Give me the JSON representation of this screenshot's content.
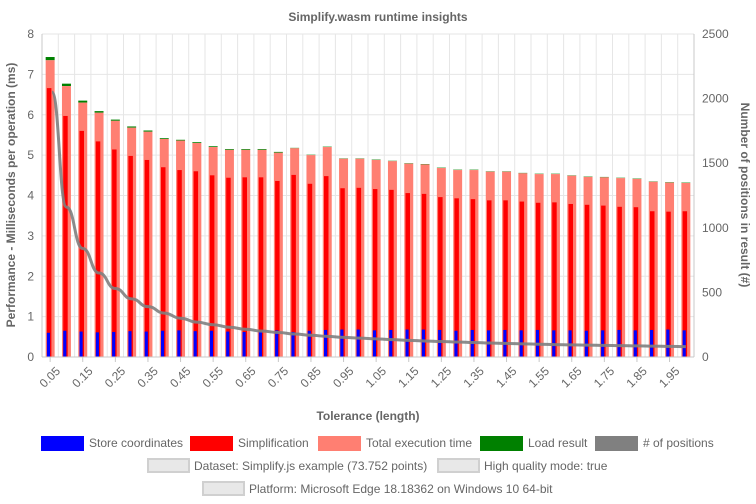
{
  "chart_data": {
    "type": "bar",
    "title": "Simplify.wasm runtime insights",
    "xlabel": "Tolerance (length)",
    "ylabel": "Performance - Milliseconds per operation (ms)",
    "y2label": "Number of positions in result (#)",
    "ylim": [
      0,
      8
    ],
    "y2lim": [
      0,
      2500
    ],
    "yticks": [
      "0",
      "1",
      "2",
      "3",
      "4",
      "5",
      "6",
      "7",
      "8"
    ],
    "y2ticks": [
      "0",
      "500",
      "1000",
      "1500",
      "2000",
      "2500"
    ],
    "x": [
      0.05,
      0.1,
      0.15,
      0.2,
      0.25,
      0.3,
      0.35,
      0.4,
      0.45,
      0.5,
      0.55,
      0.6,
      0.65,
      0.7,
      0.75,
      0.8,
      0.85,
      0.9,
      0.95,
      1.0,
      1.05,
      1.1,
      1.15,
      1.2,
      1.25,
      1.3,
      1.35,
      1.4,
      1.45,
      1.5,
      1.55,
      1.6,
      1.65,
      1.7,
      1.75,
      1.8,
      1.85,
      1.9,
      1.95,
      2.0
    ],
    "x_tick_labels": [
      "0.05",
      "0.15",
      "0.25",
      "0.35",
      "0.45",
      "0.55",
      "0.65",
      "0.75",
      "0.85",
      "0.95",
      "1.05",
      "1.15",
      "1.25",
      "1.35",
      "1.45",
      "1.55",
      "1.65",
      "1.75",
      "1.85",
      "1.95"
    ],
    "series": [
      {
        "name": "Store coordinates",
        "type": "bar",
        "color": "#0000ff",
        "values": [
          0.6,
          0.65,
          0.63,
          0.61,
          0.62,
          0.64,
          0.63,
          0.65,
          0.66,
          0.64,
          0.65,
          0.63,
          0.62,
          0.64,
          0.66,
          0.62,
          0.65,
          0.67,
          0.68,
          0.68,
          0.66,
          0.67,
          0.68,
          0.68,
          0.67,
          0.65,
          0.67,
          0.66,
          0.67,
          0.66,
          0.67,
          0.66,
          0.66,
          0.65,
          0.66,
          0.67,
          0.66,
          0.67,
          0.68,
          0.66
        ]
      },
      {
        "name": "Simplification",
        "type": "bar",
        "color": "#ff0000",
        "values": [
          6.66,
          5.97,
          5.6,
          5.34,
          5.14,
          4.98,
          4.88,
          4.7,
          4.63,
          4.6,
          4.5,
          4.44,
          4.45,
          4.45,
          4.36,
          4.51,
          4.29,
          4.48,
          4.18,
          4.19,
          4.16,
          4.14,
          4.06,
          4.04,
          3.96,
          3.93,
          3.91,
          3.88,
          3.88,
          3.85,
          3.82,
          3.83,
          3.79,
          3.77,
          3.75,
          3.72,
          3.71,
          3.61,
          3.6,
          3.61
        ]
      },
      {
        "name": "Total execution time",
        "type": "bar",
        "color": "#ff7f72",
        "values": [
          7.35,
          6.71,
          6.3,
          6.05,
          5.85,
          5.68,
          5.58,
          5.4,
          5.36,
          5.3,
          5.2,
          5.13,
          5.13,
          5.13,
          5.06,
          5.17,
          5.0,
          5.2,
          4.91,
          4.91,
          4.88,
          4.85,
          4.79,
          4.77,
          4.68,
          4.63,
          4.63,
          4.59,
          4.59,
          4.55,
          4.53,
          4.53,
          4.49,
          4.46,
          4.45,
          4.43,
          4.41,
          4.34,
          4.32,
          4.31
        ]
      },
      {
        "name": "Load result",
        "type": "bar",
        "color": "#008000",
        "values": [
          0.08,
          0.06,
          0.05,
          0.04,
          0.03,
          0.03,
          0.03,
          0.02,
          0.02,
          0.02,
          0.02,
          0.02,
          0.02,
          0.02,
          0.02,
          0.01,
          0.01,
          0.01,
          0.01,
          0.01,
          0.01,
          0.01,
          0.01,
          0.01,
          0.01,
          0.01,
          0.01,
          0.01,
          0.01,
          0.01,
          0.01,
          0.01,
          0.01,
          0.01,
          0.01,
          0.01,
          0.01,
          0.01,
          0.01,
          0.01
        ]
      },
      {
        "name": "# of positions",
        "type": "line",
        "axis": "right",
        "color": "#808080",
        "values": [
          2050,
          1160,
          840,
          650,
          530,
          450,
          390,
          340,
          300,
          270,
          250,
          230,
          215,
          200,
          190,
          178,
          168,
          160,
          152,
          146,
          140,
          134,
          129,
          124,
          120,
          116,
          112,
          108,
          105,
          102,
          99,
          96,
          94,
          92,
          90,
          88,
          86,
          84,
          82,
          80
        ]
      }
    ],
    "legend_position": "bottom",
    "grid": true,
    "dataset_labels": [
      "Dataset: Simplify.js example (73.752 points)",
      "High quality mode: true",
      "Platform: Microsoft Edge 18.18362 on Windows 10 64-bit"
    ]
  }
}
